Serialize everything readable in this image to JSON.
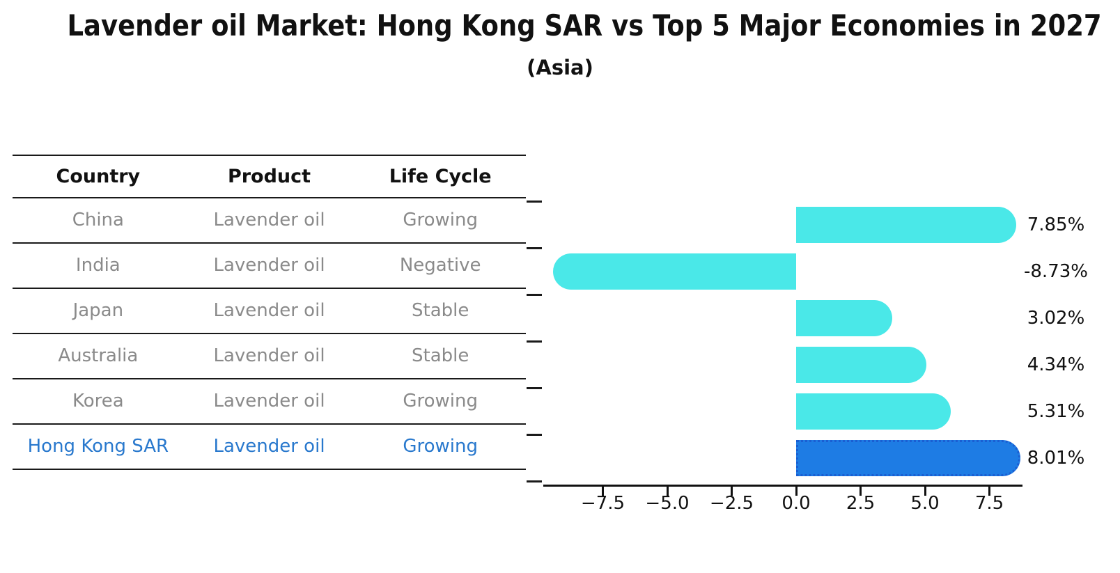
{
  "title": "Lavender oil Market: Hong Kong SAR vs Top 5 Major Economies in 2027",
  "subtitle": "(Asia)",
  "table": {
    "headers": [
      "Country",
      "Product",
      "Life Cycle"
    ],
    "rows": [
      {
        "country": "China",
        "product": "Lavender oil",
        "life_cycle": "Growing",
        "highlight": false
      },
      {
        "country": "India",
        "product": "Lavender oil",
        "life_cycle": "Negative",
        "highlight": false
      },
      {
        "country": "Japan",
        "product": "Lavender oil",
        "life_cycle": "Stable",
        "highlight": false
      },
      {
        "country": "Australia",
        "product": "Lavender oil",
        "life_cycle": "Stable",
        "highlight": false
      },
      {
        "country": "Korea",
        "product": "Lavender oil",
        "life_cycle": "Growing",
        "highlight": false
      },
      {
        "country": "Hong Kong SAR",
        "product": "Lavender oil",
        "life_cycle": "Growing",
        "highlight": true
      }
    ]
  },
  "chart_data": {
    "type": "bar",
    "orientation": "horizontal",
    "categories": [
      "China",
      "India",
      "Japan",
      "Australia",
      "Korea",
      "Hong Kong SAR"
    ],
    "values": [
      7.85,
      -8.73,
      3.02,
      4.34,
      5.31,
      8.01
    ],
    "labels": [
      "7.85%",
      "-8.73%",
      "3.02%",
      "4.34%",
      "5.31%",
      "8.01%"
    ],
    "x_tick_labels": [
      "−7.5",
      "−5.0",
      "−2.5",
      "0.0",
      "2.5",
      "5.0",
      "7.5"
    ],
    "x_tick_values": [
      -7.5,
      -5.0,
      -2.5,
      0.0,
      2.5,
      5.0,
      7.5
    ],
    "xlim": [
      -9.6,
      8.8
    ],
    "grid": false,
    "legend": "none",
    "bar_color": "#4AE8E8",
    "highlight_color": "#1E7CE4",
    "highlight_border_color": "#1B5ED2",
    "highlight_index": 5,
    "unit": "%"
  },
  "colors": {
    "background": "#ffffff",
    "axis": "#111111",
    "table_line": "#1a1a1a",
    "row_text": "#8a8a8a",
    "highlight_text": "#2878cd"
  }
}
